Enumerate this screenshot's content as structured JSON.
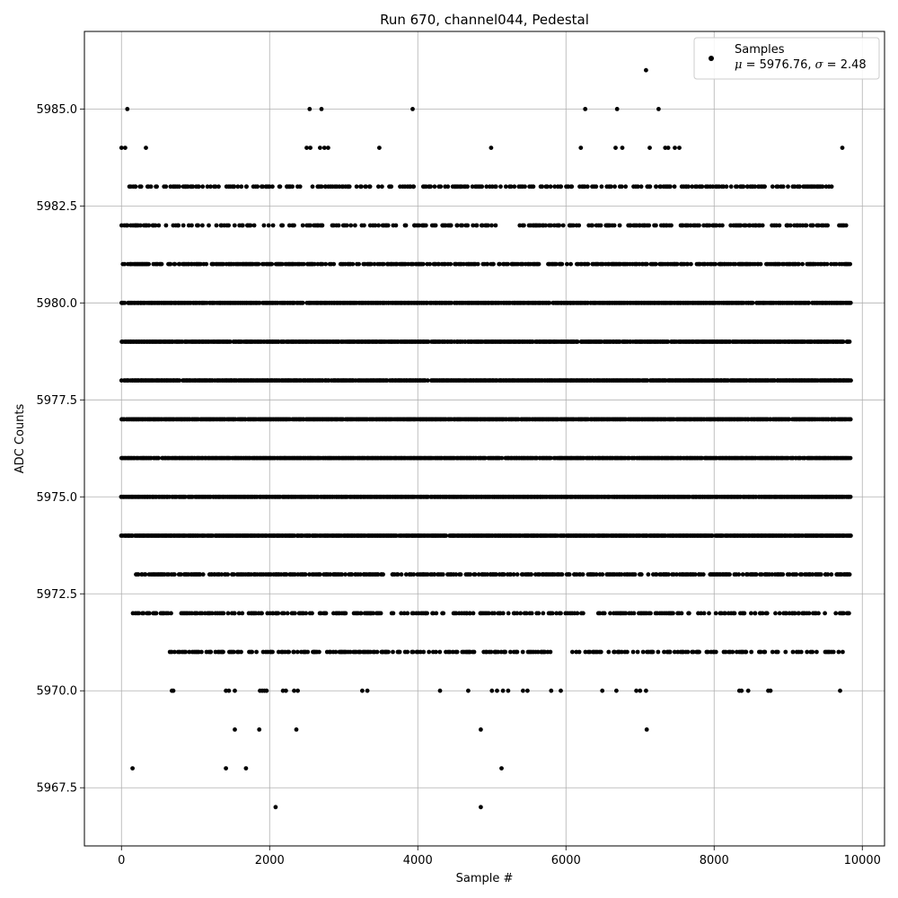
{
  "chart_data": {
    "type": "scatter",
    "title": "Run 670, channel044, Pedestal",
    "xlabel": "Sample #",
    "ylabel": "ADC Counts",
    "xlim": [
      -500,
      10300
    ],
    "ylim": [
      5966.0,
      5987.0
    ],
    "x_ticks": [
      0,
      2000,
      4000,
      6000,
      8000,
      10000
    ],
    "x_tick_labels": [
      "0",
      "2000",
      "4000",
      "6000",
      "8000",
      "10000"
    ],
    "y_ticks": [
      5967.5,
      5970.0,
      5972.5,
      5975.0,
      5977.5,
      5980.0,
      5982.5,
      5985.0
    ],
    "y_tick_labels": [
      "5967.5",
      "5970.0",
      "5972.5",
      "5975.0",
      "5977.5",
      "5980.0",
      "5982.5",
      "5985.0"
    ],
    "grid": true,
    "legend": {
      "placement": "top-right",
      "label": "Samples",
      "stats_mu": "5976.76",
      "stats_sigma": "2.48"
    },
    "marker_color": "#000000",
    "series": [
      {
        "name": "Samples",
        "levels": [
          {
            "y": 5974,
            "ranges": [
              [
                0,
                9850
              ]
            ]
          },
          {
            "y": 5975,
            "ranges": [
              [
                0,
                9850
              ]
            ]
          },
          {
            "y": 5976,
            "ranges": [
              [
                0,
                9850
              ]
            ]
          },
          {
            "y": 5977,
            "ranges": [
              [
                0,
                9850
              ]
            ]
          },
          {
            "y": 5978,
            "ranges": [
              [
                0,
                9850
              ]
            ]
          },
          {
            "y": 5979,
            "ranges": [
              [
                0,
                9850
              ]
            ]
          },
          {
            "y": 5980,
            "ranges": [
              [
                0,
                9850
              ]
            ]
          },
          {
            "y": 5981,
            "ranges": [
              [
                0,
                9850
              ]
            ]
          },
          {
            "y": 5973,
            "ranges": [
              [
                130,
                9840
              ]
            ]
          },
          {
            "y": 5982,
            "ranges": [
              [
                0,
                9840
              ]
            ]
          },
          {
            "y": 5972,
            "ranges": [
              [
                160,
                9820
              ]
            ]
          },
          {
            "y": 5983,
            "ranges": [
              [
                0,
                9820
              ]
            ]
          },
          {
            "y": 5971,
            "ranges": [
              [
                650,
                9750
              ]
            ]
          }
        ],
        "points": [
          [
            0,
            5984
          ],
          [
            50,
            5984
          ],
          [
            80,
            5985
          ],
          [
            330,
            5984
          ],
          [
            2500,
            5984
          ],
          [
            2550,
            5984
          ],
          [
            2680,
            5984
          ],
          [
            2740,
            5984
          ],
          [
            2790,
            5984
          ],
          [
            3480,
            5984
          ],
          [
            4990,
            5984
          ],
          [
            6200,
            5984
          ],
          [
            6670,
            5984
          ],
          [
            6760,
            5984
          ],
          [
            7130,
            5984
          ],
          [
            7340,
            5984
          ],
          [
            7380,
            5984
          ],
          [
            7470,
            5984
          ],
          [
            7530,
            5984
          ],
          [
            9730,
            5984
          ],
          [
            2540,
            5985
          ],
          [
            2700,
            5985
          ],
          [
            3930,
            5985
          ],
          [
            6260,
            5985
          ],
          [
            6690,
            5985
          ],
          [
            7250,
            5985
          ],
          [
            7080,
            5986
          ],
          [
            680,
            5970
          ],
          [
            700,
            5970
          ],
          [
            1410,
            5970
          ],
          [
            1450,
            5970
          ],
          [
            1530,
            5970
          ],
          [
            1870,
            5970
          ],
          [
            1900,
            5970
          ],
          [
            1930,
            5970
          ],
          [
            1960,
            5970
          ],
          [
            2180,
            5970
          ],
          [
            2220,
            5970
          ],
          [
            2330,
            5970
          ],
          [
            2380,
            5970
          ],
          [
            3250,
            5970
          ],
          [
            3320,
            5970
          ],
          [
            4300,
            5970
          ],
          [
            4680,
            5970
          ],
          [
            5000,
            5970
          ],
          [
            5070,
            5970
          ],
          [
            5150,
            5970
          ],
          [
            5220,
            5970
          ],
          [
            5420,
            5970
          ],
          [
            5480,
            5970
          ],
          [
            5800,
            5970
          ],
          [
            5930,
            5970
          ],
          [
            6490,
            5970
          ],
          [
            6680,
            5970
          ],
          [
            6950,
            5970
          ],
          [
            7000,
            5970
          ],
          [
            7080,
            5970
          ],
          [
            8340,
            5970
          ],
          [
            8370,
            5970
          ],
          [
            8460,
            5970
          ],
          [
            8730,
            5970
          ],
          [
            8760,
            5970
          ],
          [
            9700,
            5970
          ],
          [
            1530,
            5969
          ],
          [
            1860,
            5969
          ],
          [
            2360,
            5969
          ],
          [
            4850,
            5969
          ],
          [
            7090,
            5969
          ],
          [
            150,
            5968
          ],
          [
            1410,
            5968
          ],
          [
            1680,
            5968
          ],
          [
            5130,
            5968
          ],
          [
            2080,
            5967
          ],
          [
            4850,
            5967
          ]
        ]
      }
    ]
  }
}
